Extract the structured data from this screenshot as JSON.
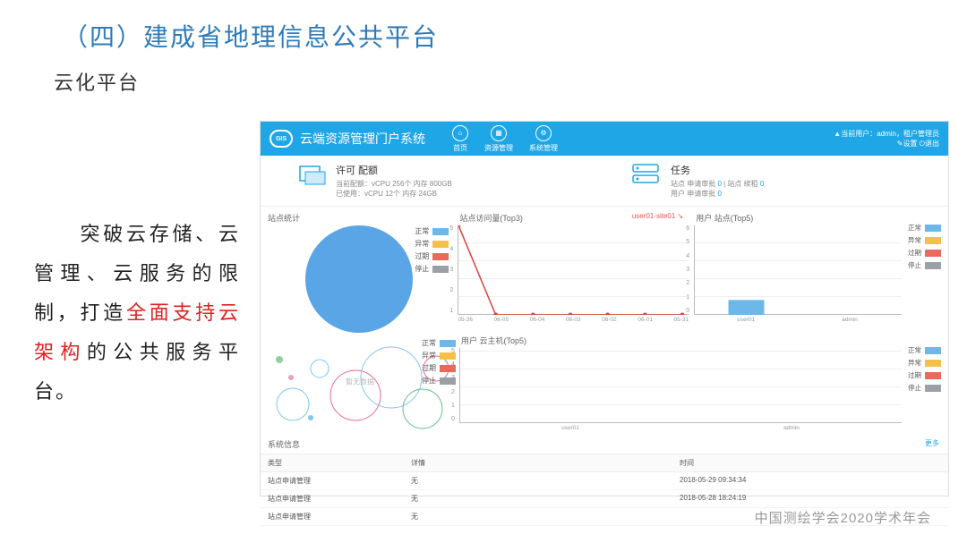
{
  "slide": {
    "title": "（四）建成省地理信息公共平台",
    "subtitle": "云化平台",
    "body_prefix": "　　突破云存储、云管理、云服务的限制，打造",
    "body_highlight": "全面支持云架构",
    "body_suffix": "的公共服务平台。",
    "footer": "中国测绘学会2020学术年会"
  },
  "dashboard": {
    "header": {
      "logo_text": "GIS",
      "title": "云端资源管理门户系统",
      "nav": [
        "首页",
        "资源管理",
        "系统管理"
      ],
      "user_line1": "▲当前用户：admin，租户管理员",
      "user_line2": "✎设置 ⏻退出"
    },
    "info": {
      "license": {
        "title": "许可 配额",
        "line1": "当前配额：vCPU 256个 内存 800GB",
        "line2": "已使用：vCPU 12个 内存 24GB"
      },
      "tasks": {
        "title": "任务",
        "line1_a": "站点 申请审批 ",
        "line1_b": "0",
        "line1_c": " | 站点 续租 ",
        "line1_d": "0",
        "line2_a": "用户 申请审批 ",
        "line2_b": "0"
      }
    },
    "legend_colors": {
      "normal": "#6db8e8",
      "warn": "#f5c04a",
      "expired": "#e86a5a",
      "stopped": "#9aa0a6"
    },
    "legend_labels": {
      "normal": "正常",
      "warn": "异常",
      "expired": "过期",
      "stopped": "停止"
    },
    "pie": {
      "title": "站点统计",
      "color": "#5aa5e6",
      "values": {
        "normal": 1,
        "warn": 0,
        "expired": 0,
        "stopped": 0
      }
    },
    "visits": {
      "title": "站点访问量(Top3)",
      "user_tag": "user01-site01 ↘",
      "y_ticks": [
        5,
        4,
        3,
        2,
        1
      ],
      "x_ticks": [
        "05-26",
        "06-05",
        "06-04",
        "06-03",
        "06-02",
        "06-01",
        "05-31"
      ],
      "line_color": "#e04040",
      "points": [
        [
          0,
          5
        ],
        [
          1,
          0
        ],
        [
          2,
          0
        ],
        [
          3,
          0
        ],
        [
          4,
          0
        ],
        [
          5,
          0
        ],
        [
          6,
          0
        ]
      ]
    },
    "user_sites": {
      "title": "用户 站点(Top5)",
      "y_ticks": [
        6,
        5,
        4,
        3,
        2,
        1,
        0
      ],
      "x_labels": [
        "user01",
        "admin"
      ],
      "bars": [
        {
          "label": "user01",
          "value": 1,
          "color": "#6db8e8"
        },
        {
          "label": "admin",
          "value": 0,
          "color": "#6db8e8"
        }
      ]
    },
    "bubble": {
      "no_data": "暂无数据"
    },
    "user_hosts": {
      "title": "用户 云主机(Top5)",
      "y_ticks": [
        5,
        4,
        3,
        2,
        1,
        0
      ],
      "x_labels": [
        "user01",
        "admin"
      ],
      "bars": [
        {
          "label": "user01",
          "value": 0,
          "color": "#6db8e8"
        },
        {
          "label": "admin",
          "value": 0,
          "color": "#6db8e8"
        }
      ]
    },
    "system": {
      "title": "系统信息",
      "more": "更多",
      "columns": [
        "类型",
        "详情",
        "时间"
      ],
      "rows": [
        [
          "站点申请管理",
          "无",
          "2018-05-29 09:34:34"
        ],
        [
          "站点申请管理",
          "无",
          "2018-05-28 18:24:19"
        ],
        [
          "站点申请管理",
          "无",
          ""
        ]
      ]
    }
  }
}
